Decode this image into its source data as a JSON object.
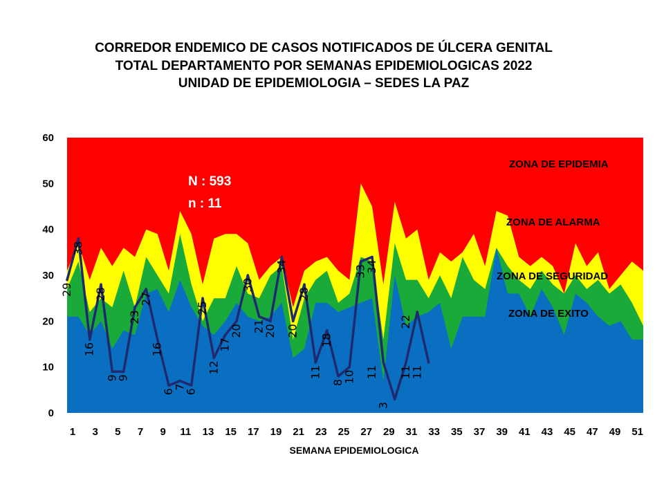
{
  "title_lines": [
    "CORREDOR ENDEMICO  DE CASOS NOTIFICADOS  DE ÚLCERA GENITAL",
    "TOTAL DEPARTAMENTO  POR SEMANAS EPIDEMIOLOGICAS  2022",
    "UNIDAD  DE EPIDEMIOLOGIA  – SEDES LA PAZ"
  ],
  "stats": {
    "N": "N : 593",
    "n": "n : 11"
  },
  "colors": {
    "epidemia": "#ff0000",
    "alarma": "#ffff00",
    "seguridad": "#1aaa3a",
    "exito": "#0a6fc0",
    "cases_line": "#1f2a6e"
  },
  "chart_data": {
    "type": "area",
    "xlabel": "SEMANA EPIDEMIOLOGICA",
    "ylabel": "",
    "ylim": [
      0,
      60
    ],
    "yticks": [
      0,
      10,
      20,
      30,
      40,
      50,
      60
    ],
    "xticks": [
      1,
      3,
      5,
      7,
      9,
      11,
      13,
      15,
      17,
      19,
      21,
      23,
      25,
      27,
      29,
      31,
      33,
      35,
      37,
      39,
      41,
      43,
      45,
      47,
      49,
      51
    ],
    "weeks": [
      1,
      2,
      3,
      4,
      5,
      6,
      7,
      8,
      9,
      10,
      11,
      12,
      13,
      14,
      15,
      16,
      17,
      18,
      19,
      20,
      21,
      22,
      23,
      24,
      25,
      26,
      27,
      28,
      29,
      30,
      31,
      32,
      33,
      34,
      35,
      36,
      37,
      38,
      39,
      40,
      41,
      42,
      43,
      44,
      45,
      46,
      47,
      48,
      49,
      50,
      51,
      52
    ],
    "zones": [
      {
        "name": "ZONA DE EXITO",
        "values": [
          21,
          21,
          17,
          20,
          14,
          18,
          17,
          26,
          27,
          22,
          29,
          23,
          19,
          17,
          20,
          24,
          21,
          20,
          21,
          24,
          12,
          14,
          24,
          24,
          22,
          23,
          24,
          25,
          7,
          30,
          19,
          21,
          22,
          24,
          14,
          21,
          21,
          21,
          36,
          26,
          26,
          21,
          27,
          23,
          17,
          26,
          24,
          21,
          19,
          20,
          16,
          16
        ]
      },
      {
        "name": "ZONA DE  SEGURIDAD",
        "values": [
          27,
          33,
          22,
          25,
          23,
          31,
          23,
          34,
          30,
          26,
          39,
          28,
          20,
          25,
          25,
          32,
          26,
          25,
          30,
          32,
          16,
          25,
          29,
          31,
          24,
          26,
          34,
          33,
          16,
          37,
          29,
          29,
          25,
          30,
          25,
          34,
          29,
          27,
          36,
          32,
          29,
          27,
          31,
          28,
          26,
          30,
          27,
          29,
          26,
          28,
          24,
          19
        ]
      },
      {
        "name": "ZONA DE ALARMA",
        "values": [
          31,
          37,
          29,
          36,
          32,
          36,
          34,
          40,
          39,
          31,
          44,
          39,
          28,
          38,
          39,
          39,
          37,
          29,
          32,
          34,
          23,
          31,
          33,
          34,
          31,
          29,
          50,
          45,
          28,
          46,
          38,
          40,
          29,
          35,
          33,
          35,
          39,
          32,
          44,
          43,
          34,
          32,
          34,
          32,
          26,
          37,
          32,
          35,
          27,
          30,
          33,
          31
        ]
      },
      {
        "name": "ZONA DE EPIDEMIA",
        "values": [
          60,
          60,
          60,
          60,
          60,
          60,
          60,
          60,
          60,
          60,
          60,
          60,
          60,
          60,
          60,
          60,
          60,
          60,
          60,
          60,
          60,
          60,
          60,
          60,
          60,
          60,
          60,
          60,
          60,
          60,
          60,
          60,
          60,
          60,
          60,
          60,
          60,
          60,
          60,
          60,
          60,
          60,
          60,
          60,
          60,
          60,
          60,
          60,
          60,
          60,
          60,
          60
        ]
      }
    ],
    "series": [
      {
        "values": [
          29,
          38,
          16,
          28,
          9,
          9,
          23,
          27,
          16,
          6,
          7,
          6,
          25,
          12,
          17,
          20,
          30,
          21,
          20,
          34,
          20,
          28,
          11,
          18,
          8,
          10,
          33,
          34,
          11,
          3,
          11,
          22,
          11
        ]
      }
    ],
    "data_labels": [
      "29",
      "38",
      "16",
      "28",
      "9",
      "9",
      "23",
      "27",
      "16",
      "6",
      "7",
      "6",
      "25",
      "12",
      "17",
      "20",
      "30",
      "21",
      "20",
      "34",
      "20",
      "28",
      "11",
      "18",
      "8",
      "10",
      "33",
      "34",
      "11",
      "3",
      "11",
      "22",
      "11"
    ],
    "label_weeks": [
      1,
      2,
      3,
      4,
      5,
      6,
      7,
      8,
      9,
      10,
      11,
      12,
      13,
      14,
      15,
      16,
      17,
      18,
      19,
      20,
      21,
      22,
      23,
      24,
      25,
      26,
      27,
      28,
      28,
      29,
      31,
      31,
      32
    ],
    "label_values": [
      29,
      38,
      16,
      28,
      9,
      9,
      23,
      27,
      16,
      6,
      7,
      6,
      25,
      12,
      17,
      20,
      30,
      21,
      20,
      34,
      20,
      28,
      11,
      18,
      8,
      10,
      33,
      34,
      11,
      3,
      11,
      22,
      11
    ],
    "annotations": [
      "ZONA DE EPIDEMIA",
      "ZONA DE ALARMA",
      "ZONA DE  SEGURIDAD",
      "ZONA DE  EXITO"
    ]
  }
}
